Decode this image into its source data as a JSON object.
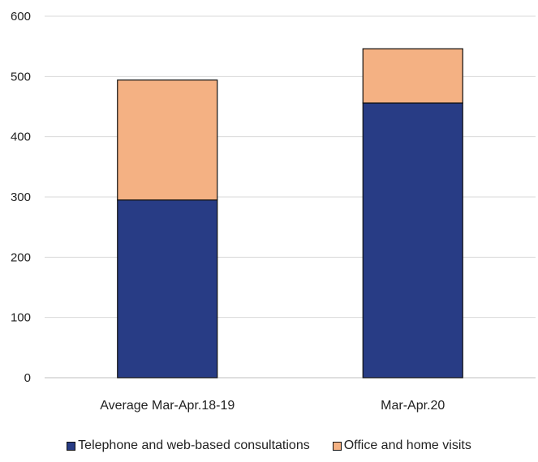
{
  "chart_data": {
    "type": "bar",
    "stacked": true,
    "categories": [
      "Average Mar-Apr.18-19",
      "Mar-Apr.20"
    ],
    "series": [
      {
        "name": "Telephone and web-based consultations",
        "values": [
          295,
          456
        ],
        "color": "#283c85"
      },
      {
        "name": "Office and home visits",
        "values": [
          199,
          90
        ],
        "color": "#f4b183"
      }
    ],
    "ylim": [
      0,
      600
    ],
    "yticks": [
      0,
      100,
      200,
      300,
      400,
      500,
      600
    ],
    "grid": true,
    "legend_position": "bottom"
  }
}
